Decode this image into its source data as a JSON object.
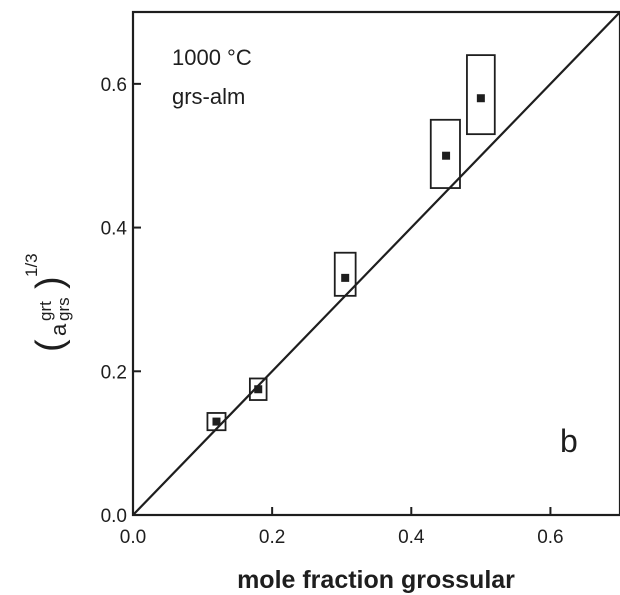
{
  "chart_data": {
    "type": "scatter",
    "xlabel": "mole fraction grossular",
    "ylabel": {
      "base": "a",
      "superscript": "grt",
      "subscript": "grs",
      "exponent": "1/3"
    },
    "xlim": [
      0.0,
      0.7
    ],
    "ylim": [
      0.0,
      0.7
    ],
    "xticks": [
      "0.0",
      "0.2",
      "0.4",
      "0.6"
    ],
    "yticks": [
      "0.0",
      "0.2",
      "0.4",
      "0.6"
    ],
    "annotations": [
      "1000 °C",
      "grs-alm"
    ],
    "panel_label": "b",
    "points": [
      {
        "x": 0.12,
        "y": 0.13,
        "x_err": [
          0.107,
          0.133
        ],
        "y_err": [
          0.118,
          0.142
        ]
      },
      {
        "x": 0.18,
        "y": 0.175,
        "x_err": [
          0.168,
          0.192
        ],
        "y_err": [
          0.16,
          0.19
        ]
      },
      {
        "x": 0.305,
        "y": 0.33,
        "x_err": [
          0.29,
          0.32
        ],
        "y_err": [
          0.305,
          0.365
        ]
      },
      {
        "x": 0.45,
        "y": 0.5,
        "x_err": [
          0.428,
          0.47
        ],
        "y_err": [
          0.455,
          0.55
        ]
      },
      {
        "x": 0.5,
        "y": 0.58,
        "x_err": [
          0.48,
          0.52
        ],
        "y_err": [
          0.53,
          0.64
        ]
      }
    ],
    "reference_line": {
      "x": [
        0.0,
        0.7
      ],
      "y": [
        0.0,
        0.7
      ]
    },
    "grid": false,
    "legend": "none"
  }
}
